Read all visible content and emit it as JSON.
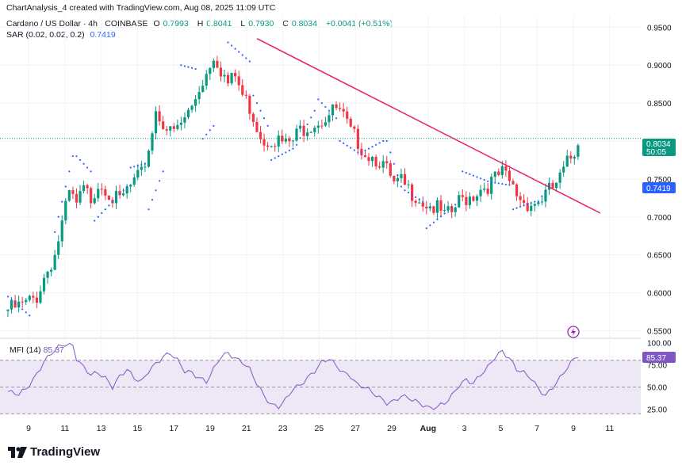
{
  "header": {
    "created_by": "ChartAnalysis_4 created with TradingView.com, Aug 08, 2025 11:09 UTC",
    "symbol": "Cardano / US Dollar · 4h · COINBASE",
    "ohlc": [
      {
        "label": "O",
        "value": "0.7993"
      },
      {
        "label": "H",
        "value": "0.8041"
      },
      {
        "label": "L",
        "value": "0.7930"
      },
      {
        "label": "C",
        "value": "0.8034"
      }
    ],
    "change": "+0.0041 (+0.51%)",
    "sar_label": "SAR (0.02, 0.02, 0.2)",
    "sar_value": "0.7419"
  },
  "mfi": {
    "label": "MFI (14)",
    "value": "85.37"
  },
  "price_axis_badges": {
    "last_price": "0.8034",
    "countdown": "50:05",
    "sar": "0.7419",
    "mfi": "85.37"
  },
  "brand": "TradingView",
  "colors": {
    "up": "#089981",
    "down": "#f23645",
    "trendline": "#e91e63",
    "sar": "#2962ff",
    "mfi": "#7e57c2",
    "mfi_band": "#ede7f6"
  },
  "chart_data": [
    {
      "type": "candlestick",
      "title": "Cardano / US Dollar · 4h · COINBASE",
      "x_tick_labels": [
        "9",
        "11",
        "13",
        "15",
        "17",
        "19",
        "21",
        "23",
        "25",
        "27",
        "29",
        "Aug",
        "3",
        "5",
        "7",
        "9",
        "11"
      ],
      "y_ticks": [
        "0.9500",
        "0.9000",
        "0.8500",
        "0.8000",
        "0.7500",
        "0.7000",
        "0.6500",
        "0.6000",
        "0.5500"
      ],
      "ylim": [
        0.54,
        0.965
      ],
      "grid": true,
      "close_path": [
        [
          0,
          0.578
        ],
        [
          2,
          0.58
        ],
        [
          5,
          0.585
        ],
        [
          8,
          0.595
        ],
        [
          10,
          0.62
        ],
        [
          13,
          0.65
        ],
        [
          15,
          0.69
        ],
        [
          17,
          0.73
        ],
        [
          19,
          0.715
        ],
        [
          21,
          0.735
        ],
        [
          23,
          0.725
        ],
        [
          25,
          0.745
        ],
        [
          27,
          0.74
        ],
        [
          29,
          0.725
        ],
        [
          31,
          0.72
        ],
        [
          33,
          0.735
        ],
        [
          35,
          0.745
        ],
        [
          37,
          0.755
        ],
        [
          39,
          0.79
        ],
        [
          41,
          0.84
        ],
        [
          43,
          0.825
        ],
        [
          45,
          0.81
        ],
        [
          47,
          0.815
        ],
        [
          49,
          0.83
        ],
        [
          51,
          0.845
        ],
        [
          53,
          0.87
        ],
        [
          55,
          0.89
        ],
        [
          57,
          0.915
        ],
        [
          59,
          0.895
        ],
        [
          61,
          0.875
        ],
        [
          63,
          0.885
        ],
        [
          65,
          0.86
        ],
        [
          67,
          0.845
        ],
        [
          69,
          0.82
        ],
        [
          71,
          0.8
        ],
        [
          73,
          0.805
        ],
        [
          75,
          0.8
        ],
        [
          77,
          0.795
        ],
        [
          79,
          0.8
        ],
        [
          81,
          0.815
        ],
        [
          83,
          0.82
        ],
        [
          85,
          0.825
        ],
        [
          87,
          0.828
        ],
        [
          89,
          0.835
        ],
        [
          91,
          0.842
        ],
        [
          93,
          0.83
        ],
        [
          95,
          0.81
        ],
        [
          97,
          0.8
        ],
        [
          99,
          0.785
        ],
        [
          101,
          0.78
        ],
        [
          103,
          0.775
        ],
        [
          105,
          0.76
        ],
        [
          107,
          0.74
        ],
        [
          109,
          0.745
        ],
        [
          111,
          0.735
        ],
        [
          113,
          0.73
        ],
        [
          115,
          0.72
        ],
        [
          117,
          0.715
        ],
        [
          119,
          0.71
        ],
        [
          121,
          0.7
        ],
        [
          123,
          0.705
        ],
        [
          125,
          0.72
        ],
        [
          127,
          0.725
        ],
        [
          129,
          0.73
        ],
        [
          131,
          0.738
        ],
        [
          133,
          0.742
        ],
        [
          135,
          0.75
        ],
        [
          137,
          0.757
        ],
        [
          139,
          0.745
        ],
        [
          141,
          0.73
        ],
        [
          143,
          0.72
        ],
        [
          145,
          0.718
        ],
        [
          147,
          0.72
        ],
        [
          149,
          0.73
        ],
        [
          151,
          0.738
        ],
        [
          153,
          0.75
        ],
        [
          155,
          0.77
        ],
        [
          157,
          0.785
        ],
        [
          158,
          0.8034
        ]
      ],
      "trendline": {
        "from": [
          0.5,
          0.935
        ],
        "to": [
          1,
          0.705
        ]
      },
      "sar_segments": [
        {
          "from": [
            0,
            0.595
          ],
          "to": [
            6,
            0.57
          ]
        },
        {
          "from": [
            13,
            0.68
          ],
          "to": [
            18,
            0.78
          ]
        },
        {
          "from": [
            19,
            0.78
          ],
          "to": [
            23,
            0.76
          ]
        },
        {
          "from": [
            24,
            0.695
          ],
          "to": [
            33,
            0.74
          ]
        },
        {
          "from": [
            34,
            0.765
          ],
          "to": [
            38,
            0.77
          ]
        },
        {
          "from": [
            39,
            0.71
          ],
          "to": [
            43,
            0.76
          ]
        },
        {
          "from": [
            48,
            0.9
          ],
          "to": [
            52,
            0.895
          ]
        },
        {
          "from": [
            54,
            0.803
          ],
          "to": [
            57,
            0.82
          ]
        },
        {
          "from": [
            61,
            0.93
          ],
          "to": [
            67,
            0.905
          ]
        },
        {
          "from": [
            68,
            0.86
          ],
          "to": [
            72,
            0.82
          ]
        },
        {
          "from": [
            73,
            0.775
          ],
          "to": [
            79,
            0.79
          ]
        },
        {
          "from": [
            80,
            0.795
          ],
          "to": [
            85,
            0.84
          ]
        },
        {
          "from": [
            86,
            0.855
          ],
          "to": [
            91,
            0.83
          ]
        },
        {
          "from": [
            92,
            0.8
          ],
          "to": [
            97,
            0.785
          ]
        },
        {
          "from": [
            98,
            0.785
          ],
          "to": [
            104,
            0.8
          ]
        },
        {
          "from": [
            105,
            0.8
          ],
          "to": [
            109,
            0.74
          ]
        },
        {
          "from": [
            110,
            0.735
          ],
          "to": [
            115,
            0.72
          ]
        },
        {
          "from": [
            116,
            0.685
          ],
          "to": [
            125,
            0.72
          ]
        },
        {
          "from": [
            126,
            0.76
          ],
          "to": [
            134,
            0.745
          ]
        },
        {
          "from": [
            135,
            0.745
          ],
          "to": [
            139,
            0.742
          ]
        },
        {
          "from": [
            140,
            0.71
          ],
          "to": [
            146,
            0.72
          ]
        },
        {
          "from": [
            147,
            0.72
          ],
          "to": [
            150,
            0.742
          ]
        }
      ]
    },
    {
      "type": "line",
      "title": "MFI (14)",
      "y_ticks": [
        "100.00",
        "75.00",
        "50.00",
        "25.00"
      ],
      "bands": [
        20,
        50,
        80
      ],
      "ylim": [
        15,
        102
      ],
      "values": [
        [
          0,
          45
        ],
        [
          3,
          42
        ],
        [
          5,
          48
        ],
        [
          7,
          58
        ],
        [
          10,
          78
        ],
        [
          12,
          88
        ],
        [
          14,
          95
        ],
        [
          16,
          98
        ],
        [
          18,
          96
        ],
        [
          19,
          82
        ],
        [
          21,
          72
        ],
        [
          23,
          64
        ],
        [
          25,
          66
        ],
        [
          27,
          60
        ],
        [
          29,
          50
        ],
        [
          31,
          62
        ],
        [
          33,
          70
        ],
        [
          35,
          60
        ],
        [
          37,
          56
        ],
        [
          39,
          68
        ],
        [
          41,
          76
        ],
        [
          43,
          84
        ],
        [
          45,
          88
        ],
        [
          47,
          80
        ],
        [
          49,
          68
        ],
        [
          51,
          66
        ],
        [
          53,
          60
        ],
        [
          55,
          56
        ],
        [
          57,
          70
        ],
        [
          59,
          84
        ],
        [
          61,
          88
        ],
        [
          63,
          82
        ],
        [
          65,
          78
        ],
        [
          67,
          70
        ],
        [
          69,
          54
        ],
        [
          71,
          40
        ],
        [
          73,
          30
        ],
        [
          75,
          28
        ],
        [
          77,
          36
        ],
        [
          79,
          48
        ],
        [
          81,
          52
        ],
        [
          83,
          60
        ],
        [
          85,
          68
        ],
        [
          87,
          78
        ],
        [
          89,
          82
        ],
        [
          91,
          74
        ],
        [
          93,
          66
        ],
        [
          95,
          62
        ],
        [
          97,
          52
        ],
        [
          99,
          50
        ],
        [
          101,
          44
        ],
        [
          103,
          38
        ],
        [
          105,
          32
        ],
        [
          107,
          34
        ],
        [
          109,
          40
        ],
        [
          111,
          38
        ],
        [
          113,
          34
        ],
        [
          115,
          30
        ],
        [
          117,
          26
        ],
        [
          119,
          28
        ],
        [
          121,
          32
        ],
        [
          123,
          40
        ],
        [
          125,
          52
        ],
        [
          127,
          58
        ],
        [
          129,
          54
        ],
        [
          131,
          64
        ],
        [
          133,
          72
        ],
        [
          135,
          84
        ],
        [
          137,
          90
        ],
        [
          139,
          82
        ],
        [
          141,
          70
        ],
        [
          143,
          66
        ],
        [
          145,
          60
        ],
        [
          147,
          48
        ],
        [
          149,
          40
        ],
        [
          151,
          50
        ],
        [
          153,
          60
        ],
        [
          155,
          72
        ],
        [
          157,
          82
        ],
        [
          158,
          85.37
        ]
      ]
    }
  ]
}
